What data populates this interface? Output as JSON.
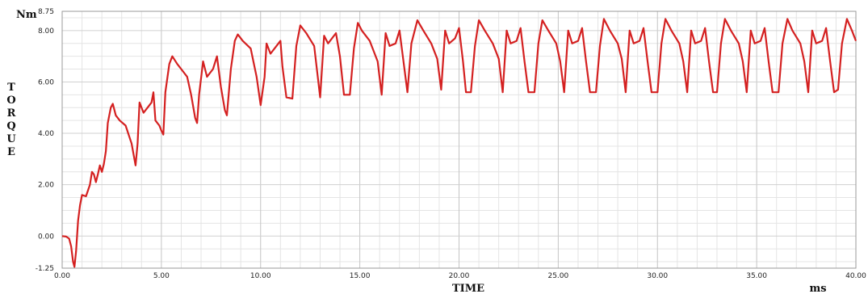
{
  "chart_data": {
    "type": "line",
    "title": "",
    "xlabel": "TIME",
    "xunit": "ms",
    "ylabel": "TORQUE",
    "yunit": "Nm",
    "xlim": [
      0,
      40
    ],
    "ylim": [
      -1.25,
      8.75
    ],
    "xticks": [
      "0.00",
      "5.00",
      "10.00",
      "15.00",
      "20.00",
      "25.00",
      "30.00",
      "35.00",
      "40.00"
    ],
    "yticks": [
      "-1.25",
      "0.00",
      "2.00",
      "4.00",
      "6.00",
      "8.00",
      "8.75"
    ],
    "grid": true,
    "line_color": "#d42020",
    "series": [
      {
        "values": [
          [
            0.0,
            0.0
          ],
          [
            0.2,
            -0.02
          ],
          [
            0.35,
            -0.1
          ],
          [
            0.45,
            -0.4
          ],
          [
            0.55,
            -1.0
          ],
          [
            0.62,
            -1.2
          ],
          [
            0.7,
            -0.6
          ],
          [
            0.8,
            0.6
          ],
          [
            0.9,
            1.2
          ],
          [
            1.0,
            1.6
          ],
          [
            1.2,
            1.55
          ],
          [
            1.4,
            2.0
          ],
          [
            1.5,
            2.5
          ],
          [
            1.6,
            2.4
          ],
          [
            1.7,
            2.1
          ],
          [
            1.8,
            2.4
          ],
          [
            1.9,
            2.75
          ],
          [
            2.0,
            2.5
          ],
          [
            2.1,
            2.8
          ],
          [
            2.2,
            3.3
          ],
          [
            2.3,
            4.4
          ],
          [
            2.45,
            5.0
          ],
          [
            2.55,
            5.15
          ],
          [
            2.7,
            4.7
          ],
          [
            2.9,
            4.5
          ],
          [
            3.2,
            4.3
          ],
          [
            3.5,
            3.6
          ],
          [
            3.7,
            2.75
          ],
          [
            3.8,
            3.6
          ],
          [
            3.9,
            5.2
          ],
          [
            4.1,
            4.8
          ],
          [
            4.3,
            5.0
          ],
          [
            4.5,
            5.2
          ],
          [
            4.6,
            5.6
          ],
          [
            4.7,
            4.5
          ],
          [
            4.9,
            4.3
          ],
          [
            5.0,
            4.1
          ],
          [
            5.1,
            3.95
          ],
          [
            5.2,
            5.6
          ],
          [
            5.4,
            6.7
          ],
          [
            5.55,
            7.0
          ],
          [
            5.8,
            6.7
          ],
          [
            6.0,
            6.5
          ],
          [
            6.3,
            6.2
          ],
          [
            6.5,
            5.5
          ],
          [
            6.7,
            4.6
          ],
          [
            6.8,
            4.4
          ],
          [
            6.9,
            5.5
          ],
          [
            7.1,
            6.8
          ],
          [
            7.3,
            6.2
          ],
          [
            7.6,
            6.5
          ],
          [
            7.8,
            7.0
          ],
          [
            8.0,
            5.8
          ],
          [
            8.2,
            4.9
          ],
          [
            8.3,
            4.7
          ],
          [
            8.5,
            6.5
          ],
          [
            8.7,
            7.6
          ],
          [
            8.85,
            7.85
          ],
          [
            9.1,
            7.6
          ],
          [
            9.5,
            7.3
          ],
          [
            9.8,
            6.2
          ],
          [
            10.0,
            5.1
          ],
          [
            10.2,
            6.2
          ],
          [
            10.3,
            7.5
          ],
          [
            10.5,
            7.1
          ],
          [
            10.8,
            7.4
          ],
          [
            11.0,
            7.6
          ],
          [
            11.1,
            6.6
          ],
          [
            11.3,
            5.4
          ],
          [
            11.6,
            5.35
          ],
          [
            11.8,
            7.4
          ],
          [
            12.0,
            8.2
          ],
          [
            12.3,
            7.9
          ],
          [
            12.7,
            7.4
          ],
          [
            13.0,
            5.4
          ],
          [
            13.2,
            7.8
          ],
          [
            13.4,
            7.5
          ],
          [
            13.6,
            7.7
          ],
          [
            13.8,
            7.9
          ],
          [
            14.0,
            7.0
          ],
          [
            14.2,
            5.5
          ],
          [
            14.5,
            5.5
          ],
          [
            14.7,
            7.3
          ],
          [
            14.9,
            8.3
          ],
          [
            15.1,
            8.0
          ],
          [
            15.5,
            7.6
          ],
          [
            15.9,
            6.8
          ],
          [
            16.1,
            5.5
          ],
          [
            16.3,
            7.9
          ],
          [
            16.5,
            7.4
          ],
          [
            16.8,
            7.5
          ],
          [
            17.0,
            8.0
          ],
          [
            17.2,
            6.8
          ],
          [
            17.4,
            5.6
          ],
          [
            17.6,
            7.5
          ],
          [
            17.9,
            8.4
          ],
          [
            18.2,
            8.0
          ],
          [
            18.6,
            7.5
          ],
          [
            18.9,
            6.9
          ],
          [
            19.1,
            5.7
          ],
          [
            19.3,
            8.0
          ],
          [
            19.5,
            7.5
          ],
          [
            19.8,
            7.7
          ],
          [
            20.0,
            8.1
          ],
          [
            20.2,
            6.8
          ],
          [
            20.35,
            5.6
          ],
          [
            20.6,
            5.6
          ],
          [
            20.8,
            7.4
          ],
          [
            21.0,
            8.4
          ],
          [
            21.3,
            8.0
          ],
          [
            21.7,
            7.5
          ],
          [
            22.0,
            6.9
          ],
          [
            22.2,
            5.6
          ],
          [
            22.4,
            8.0
          ],
          [
            22.6,
            7.5
          ],
          [
            22.9,
            7.6
          ],
          [
            23.1,
            8.1
          ],
          [
            23.3,
            6.8
          ],
          [
            23.5,
            5.6
          ],
          [
            23.8,
            5.6
          ],
          [
            24.0,
            7.5
          ],
          [
            24.2,
            8.4
          ],
          [
            24.5,
            8.0
          ],
          [
            24.9,
            7.5
          ],
          [
            25.1,
            6.8
          ],
          [
            25.3,
            5.6
          ],
          [
            25.5,
            8.0
          ],
          [
            25.7,
            7.5
          ],
          [
            26.0,
            7.6
          ],
          [
            26.2,
            8.1
          ],
          [
            26.4,
            6.8
          ],
          [
            26.6,
            5.6
          ],
          [
            26.9,
            5.6
          ],
          [
            27.1,
            7.4
          ],
          [
            27.3,
            8.45
          ],
          [
            27.6,
            8.0
          ],
          [
            28.0,
            7.5
          ],
          [
            28.2,
            6.9
          ],
          [
            28.4,
            5.6
          ],
          [
            28.6,
            8.0
          ],
          [
            28.8,
            7.5
          ],
          [
            29.1,
            7.6
          ],
          [
            29.3,
            8.1
          ],
          [
            29.5,
            6.8
          ],
          [
            29.7,
            5.6
          ],
          [
            30.0,
            5.6
          ],
          [
            30.2,
            7.5
          ],
          [
            30.4,
            8.45
          ],
          [
            30.7,
            8.0
          ],
          [
            31.1,
            7.5
          ],
          [
            31.3,
            6.8
          ],
          [
            31.5,
            5.6
          ],
          [
            31.7,
            8.0
          ],
          [
            31.9,
            7.5
          ],
          [
            32.2,
            7.6
          ],
          [
            32.4,
            8.1
          ],
          [
            32.6,
            6.8
          ],
          [
            32.8,
            5.6
          ],
          [
            33.0,
            5.6
          ],
          [
            33.2,
            7.5
          ],
          [
            33.4,
            8.45
          ],
          [
            33.7,
            8.0
          ],
          [
            34.1,
            7.5
          ],
          [
            34.3,
            6.8
          ],
          [
            34.5,
            5.6
          ],
          [
            34.7,
            8.0
          ],
          [
            34.9,
            7.5
          ],
          [
            35.2,
            7.6
          ],
          [
            35.4,
            8.1
          ],
          [
            35.6,
            6.8
          ],
          [
            35.8,
            5.6
          ],
          [
            36.1,
            5.6
          ],
          [
            36.3,
            7.5
          ],
          [
            36.55,
            8.45
          ],
          [
            36.8,
            8.0
          ],
          [
            37.2,
            7.5
          ],
          [
            37.4,
            6.8
          ],
          [
            37.6,
            5.6
          ],
          [
            37.8,
            8.0
          ],
          [
            38.0,
            7.5
          ],
          [
            38.3,
            7.6
          ],
          [
            38.5,
            8.1
          ],
          [
            38.7,
            6.8
          ],
          [
            38.9,
            5.6
          ],
          [
            39.1,
            5.7
          ],
          [
            39.3,
            7.5
          ],
          [
            39.55,
            8.45
          ],
          [
            39.8,
            8.0
          ],
          [
            40.0,
            7.6
          ]
        ]
      }
    ]
  }
}
